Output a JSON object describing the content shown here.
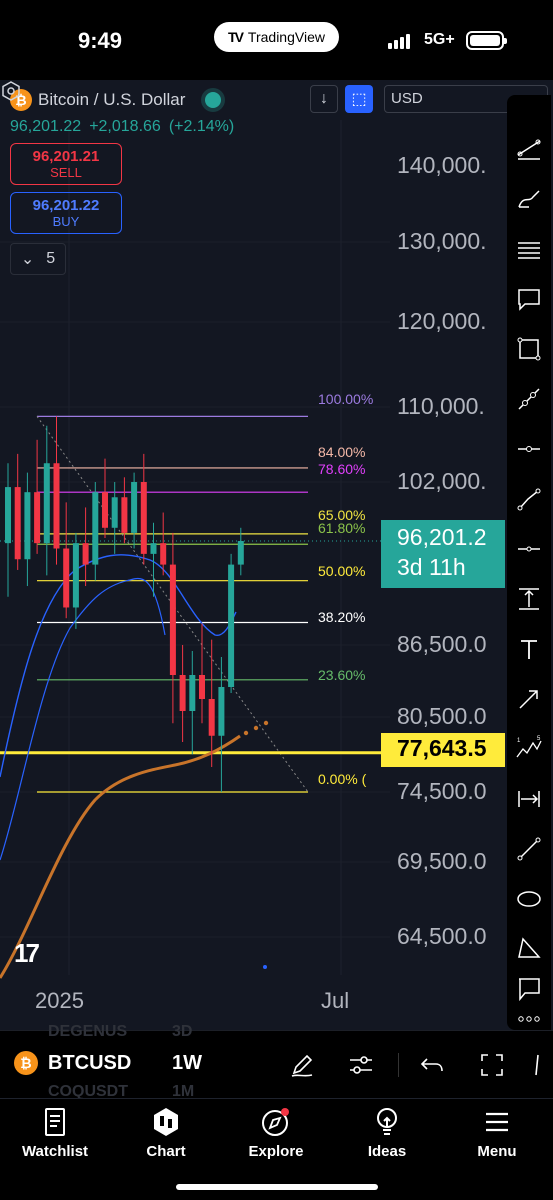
{
  "status": {
    "time": "9:49",
    "app_pill": "TradingView",
    "network": "5G+"
  },
  "header": {
    "symbol_title": "Bitcoin / U.S. Dollar",
    "last_price": "96,201.22",
    "change": "+2,018.66",
    "change_pct": "(+2.14%)",
    "sell_price": "96,201.21",
    "sell_label": "SELL",
    "buy_price": "96,201.22",
    "buy_label": "BUY",
    "quantity": "5",
    "currency": "USD"
  },
  "price_axis": {
    "ticks": [
      "140,000.",
      "130,000.",
      "120,000.",
      "110,000.",
      "102,000.",
      "86,500.0",
      "80,500.0",
      "74,500.0",
      "69,500.0",
      "64,500.0"
    ],
    "current_price": "96,201.2",
    "countdown": "3d 11h",
    "highlight_level": "77,643.5"
  },
  "fib_levels": [
    {
      "label": "100.00%",
      "color": "#9c7be0"
    },
    {
      "label": "84.00%",
      "color": "#f5b9a8"
    },
    {
      "label": "78.60%",
      "color": "#e040fb"
    },
    {
      "label": "65.00%",
      "color": "#f0e442"
    },
    {
      "label": "61.80%",
      "color": "#8bc34a"
    },
    {
      "label": "50.00%",
      "color": "#ffeb3b"
    },
    {
      "label": "38.20%",
      "color": "#ffffff"
    },
    {
      "label": "23.60%",
      "color": "#66bb6a"
    },
    {
      "label": "0.00% (",
      "color": "#ffeb3b"
    }
  ],
  "time_axis": {
    "labels": [
      "2025",
      "Jul"
    ]
  },
  "chart_data": {
    "type": "candlestick",
    "timeframe": "1W",
    "candles_ohlc": [
      [
        96000,
        104000,
        91000,
        101500
      ],
      [
        101500,
        105000,
        93500,
        94500
      ],
      [
        94500,
        103000,
        92000,
        101000
      ],
      [
        101000,
        106500,
        95000,
        96000
      ],
      [
        96000,
        108000,
        93000,
        104000
      ],
      [
        104000,
        109000,
        94000,
        95500
      ],
      [
        95500,
        100000,
        89000,
        90000
      ],
      [
        90000,
        97000,
        88000,
        96000
      ],
      [
        96000,
        99500,
        92000,
        94000
      ],
      [
        94000,
        102000,
        92500,
        101000
      ],
      [
        101000,
        104500,
        96500,
        97500
      ],
      [
        97500,
        102000,
        95000,
        100500
      ],
      [
        100500,
        102500,
        96000,
        97000
      ],
      [
        97000,
        103000,
        95500,
        102000
      ],
      [
        102000,
        105000,
        94000,
        95000
      ],
      [
        95000,
        98000,
        91000,
        96000
      ],
      [
        96000,
        99000,
        93000,
        94000
      ],
      [
        94000,
        97000,
        80000,
        84000
      ],
      [
        84000,
        86500,
        78500,
        81000
      ],
      [
        81000,
        86000,
        77500,
        84000
      ],
      [
        84000,
        88500,
        80000,
        82000
      ],
      [
        82000,
        87000,
        76500,
        79000
      ],
      [
        79000,
        85500,
        74500,
        83000
      ],
      [
        83000,
        95000,
        82500,
        94000
      ],
      [
        94000,
        97500,
        93000,
        96201.22
      ]
    ],
    "fib_retracement": {
      "level_100": 109000,
      "level_0": 74500
    },
    "horizontal_line": 77643.5,
    "y_axis_ticks": [
      140000,
      130000,
      120000,
      110000,
      102000,
      86500,
      80500,
      74500,
      69500,
      64500
    ],
    "x_axis_labels": [
      "2025",
      "Jul"
    ]
  },
  "symbol_bar": {
    "ticker": "BTCUSD",
    "interval": "1W",
    "ghost_1": "DEGENUS",
    "ghost_1b": "3D",
    "ghost_2": "COQUSDT",
    "ghost_2b": "1M"
  },
  "nav": {
    "watchlist": "Watchlist",
    "chart": "Chart",
    "explore": "Explore",
    "ideas": "Ideas",
    "menu": "Menu"
  },
  "colors": {
    "up": "#26a69a",
    "down": "#f23645",
    "accent": "#2962ff",
    "highlight": "#ffeb3b",
    "ma_orange": "#c8742a",
    "ma_blue": "#2962ff"
  }
}
